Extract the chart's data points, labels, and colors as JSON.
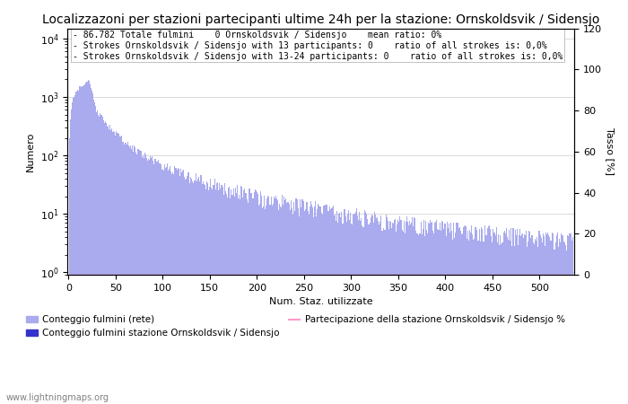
{
  "title": "Localizzazoni per stazioni partecipanti ultime 24h per la stazione: Ornskoldsvik / Sidensjo",
  "annotation_line1": "86.782 Totale fulmini    0 Ornskoldsvik / Sidensjo    mean ratio: 0%",
  "annotation_line2": "Strokes Ornskoldsvik / Sidensjo with 13 participants: 0    ratio of all strokes is: 0,0%",
  "annotation_line3": "Strokes Ornskoldsvik / Sidensjo with 13-24 participants: 0    ratio of all strokes is: 0,0%",
  "ylabel_left": "Numero",
  "ylabel_right": "Tasso [%]",
  "xlabel": "Num. Staz. utilizzate",
  "xlim": [
    0,
    535
  ],
  "ylim_right": [
    0,
    120
  ],
  "bar_color": "#aaaaee",
  "bar_color_station": "#3333cc",
  "line_color": "#ff99cc",
  "legend_label_bar": "Conteggio fulmini (rete)",
  "legend_label_station": "Conteggio fulmini stazione Ornskoldsvik / Sidensjo",
  "legend_label_line": "Partecipazione della stazione Ornskoldsvik / Sidensjo %",
  "watermark": "www.lightningmaps.org",
  "background_color": "#ffffff",
  "grid_color": "#cccccc",
  "title_fontsize": 10,
  "annotation_fontsize": 7,
  "axis_fontsize": 8,
  "total_strokes": 86782,
  "num_bins": 535
}
